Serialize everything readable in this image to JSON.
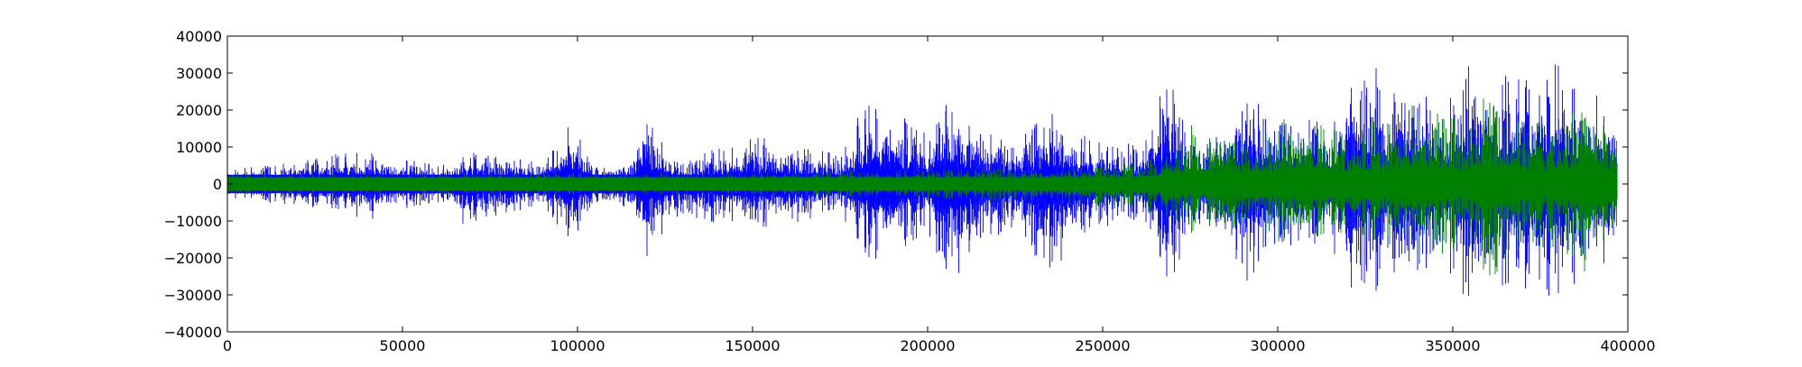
{
  "chart_data": {
    "type": "line",
    "title": "",
    "xlabel": "",
    "ylabel": "",
    "xlim": [
      0,
      400000
    ],
    "ylim": [
      -40000,
      40000
    ],
    "x_ticks": [
      0,
      50000,
      100000,
      150000,
      200000,
      250000,
      300000,
      350000,
      400000
    ],
    "x_tick_labels": [
      "0",
      "50000",
      "100000",
      "150000",
      "200000",
      "250000",
      "300000",
      "350000",
      "400000"
    ],
    "y_ticks": [
      40000,
      30000,
      20000,
      10000,
      0,
      -10000,
      -20000,
      -30000,
      -40000
    ],
    "y_tick_labels": [
      "40000",
      "30000",
      "20000",
      "10000",
      "0",
      "−10000",
      "−20000",
      "−30000",
      "−40000"
    ],
    "grid": false,
    "legend": "none",
    "data_extent_x": [
      0,
      397000
    ],
    "series": [
      {
        "color": "#0000ff",
        "envelope_x": [
          0,
          20000,
          30000,
          40000,
          50000,
          60000,
          67000,
          75000,
          90000,
          98000,
          105000,
          115000,
          119000,
          130000,
          150000,
          165000,
          175000,
          183000,
          190000,
          200000,
          206000,
          215000,
          225000,
          235000,
          245000,
          255000,
          262000,
          268000,
          275000,
          283000,
          289000,
          295000,
          300000,
          310000,
          315000,
          321000,
          330000,
          340000,
          350000,
          355000,
          360000,
          365000,
          370000,
          375000,
          380000,
          385000,
          390000,
          397000
        ],
        "envelope_max": [
          4000,
          6000,
          8000,
          9000,
          7000,
          5000,
          9000,
          8000,
          6000,
          17500,
          7000,
          5000,
          20500,
          6000,
          14000,
          10000,
          8000,
          24500,
          20000,
          14000,
          23000,
          15000,
          12000,
          21000,
          13000,
          11000,
          11000,
          32000,
          12000,
          13000,
          32500,
          22000,
          18000,
          18000,
          16000,
          32500,
          31000,
          24000,
          26000,
          32500,
          32500,
          32500,
          30000,
          32500,
          32500,
          30000,
          25000,
          19000
        ],
        "envelope_min": [
          -4000,
          -6000,
          -7000,
          -10000,
          -7000,
          -5000,
          -11000,
          -9000,
          -6000,
          -17000,
          -7000,
          -6000,
          -20500,
          -9000,
          -13000,
          -10000,
          -7000,
          -23500,
          -19000,
          -13000,
          -29000,
          -16000,
          -13000,
          -25000,
          -15000,
          -10000,
          -10000,
          -31500,
          -13000,
          -13000,
          -32500,
          -23000,
          -16000,
          -18000,
          -17000,
          -32500,
          -30000,
          -24000,
          -26000,
          -32500,
          -32500,
          -32500,
          -31000,
          -32500,
          -32500,
          -30000,
          -24000,
          -19000
        ]
      },
      {
        "color": "#008000",
        "envelope_x": [
          0,
          50000,
          100000,
          150000,
          200000,
          250000,
          260000,
          270000,
          275000,
          290000,
          307000,
          320000,
          340000,
          350000,
          355000,
          360000,
          365000,
          375000,
          385000,
          390000,
          397000
        ],
        "envelope_max": [
          2500,
          2500,
          3000,
          3000,
          4000,
          5000,
          6000,
          10000,
          16000,
          12000,
          20000,
          14000,
          22000,
          18000,
          16000,
          27000,
          20000,
          16000,
          20000,
          29000,
          12000
        ],
        "envelope_min": [
          -2500,
          -2500,
          -3000,
          -3000,
          -4000,
          -6000,
          -7000,
          -11000,
          -14000,
          -12000,
          -18000,
          -14000,
          -21000,
          -18000,
          -16000,
          -28000,
          -21000,
          -17000,
          -20000,
          -27000,
          -13000
        ]
      }
    ]
  }
}
